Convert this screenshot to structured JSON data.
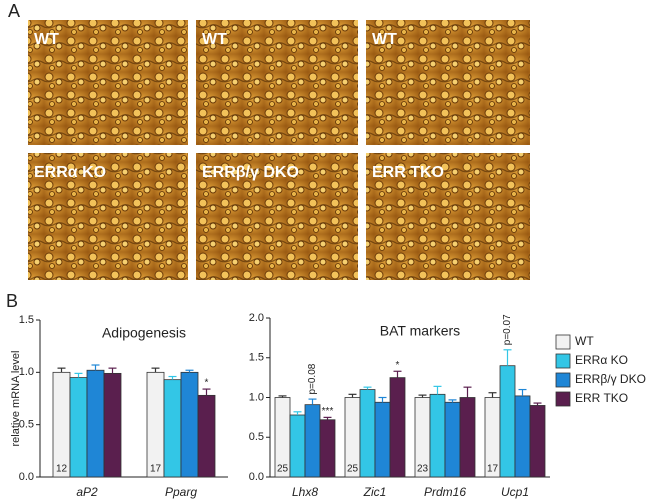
{
  "panel_a": {
    "label": "A",
    "images": [
      {
        "label": "WT"
      },
      {
        "label": "WT"
      },
      {
        "label": "WT"
      },
      {
        "label": "ERRα KO"
      },
      {
        "label": "ERRβ/γ DKO"
      },
      {
        "label": "ERR TKO"
      }
    ]
  },
  "panel_b": {
    "label": "B"
  },
  "chart_data": [
    {
      "type": "bar",
      "title": "Adipogenesis",
      "y_label": "relative mRNA level",
      "categories": [
        "aP2",
        "Pparg"
      ],
      "n_labels": [
        12,
        17
      ],
      "ylim": [
        0,
        1.5
      ],
      "yticks": [
        {
          "value": 0,
          "label": "0.0"
        },
        0.5,
        {
          "value": 1,
          "label": "1.0"
        },
        1.5
      ],
      "series": [
        {
          "name": "WT",
          "color": "#f2f2f2",
          "values": [
            1.0,
            1.0
          ],
          "errors": [
            0.04,
            0.04
          ],
          "annotations": [
            null,
            null
          ]
        },
        {
          "name": "ERRα KO",
          "color": "#33c6e6",
          "values": [
            0.95,
            0.93
          ],
          "errors": [
            0.04,
            0.03
          ],
          "annotations": [
            null,
            null
          ]
        },
        {
          "name": "ERRβ/γ DKO",
          "color": "#1f86d6",
          "values": [
            1.02,
            1.0
          ],
          "errors": [
            0.05,
            0.02
          ],
          "annotations": [
            null,
            null
          ]
        },
        {
          "name": "ERR TKO",
          "color": "#5a1f4e",
          "values": [
            0.99,
            0.78
          ],
          "errors": [
            0.05,
            0.06
          ],
          "annotations": [
            null,
            "*"
          ]
        }
      ]
    },
    {
      "type": "bar",
      "title": "BAT markers",
      "categories": [
        "Lhx8",
        "Zic1",
        "Prdm16",
        "Ucp1"
      ],
      "n_labels": [
        25,
        25,
        23,
        17
      ],
      "ylim": [
        0,
        2.0
      ],
      "yticks": [
        {
          "value": 0,
          "label": "0.0"
        },
        0.5,
        {
          "value": 1,
          "label": "1.0"
        },
        1.5,
        {
          "value": 2,
          "label": "2.0"
        }
      ],
      "series": [
        {
          "name": "WT",
          "color": "#f2f2f2",
          "values": [
            1.0,
            1.0,
            1.0,
            1.0
          ],
          "errors": [
            0.02,
            0.04,
            0.03,
            0.06
          ],
          "annotations": [
            null,
            null,
            null,
            null
          ]
        },
        {
          "name": "ERRα KO",
          "color": "#33c6e6",
          "values": [
            0.78,
            1.1,
            1.04,
            1.4
          ],
          "errors": [
            0.04,
            0.03,
            0.1,
            0.2
          ],
          "annotations": [
            null,
            null,
            null,
            "p=0.07"
          ]
        },
        {
          "name": "ERRβ/γ DKO",
          "color": "#1f86d6",
          "values": [
            0.91,
            0.94,
            0.94,
            1.02
          ],
          "errors": [
            0.07,
            0.06,
            0.03,
            0.08
          ],
          "annotations": [
            "p=0.08",
            null,
            null,
            null
          ]
        },
        {
          "name": "ERR TKO",
          "color": "#5a1f4e",
          "values": [
            0.72,
            1.25,
            1.0,
            0.9
          ],
          "errors": [
            0.03,
            0.08,
            0.13,
            0.03
          ],
          "annotations": [
            "***",
            "*",
            null,
            null
          ]
        }
      ]
    }
  ]
}
